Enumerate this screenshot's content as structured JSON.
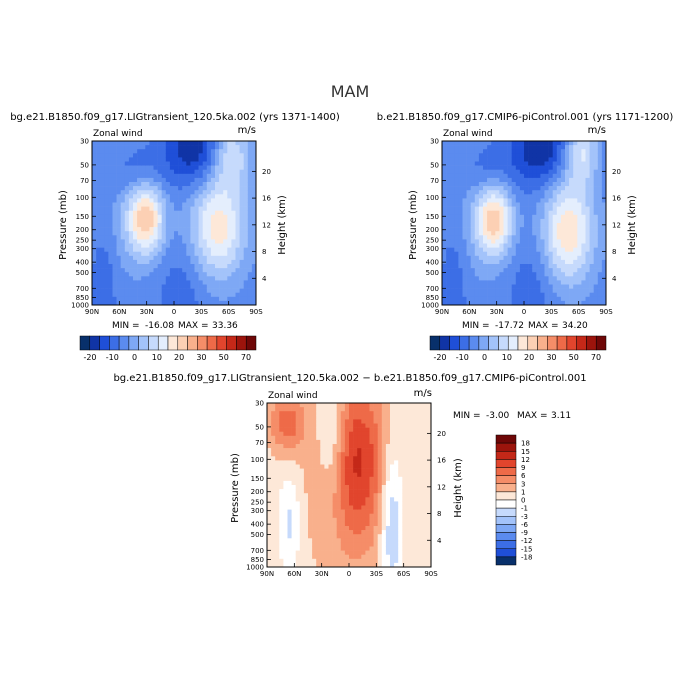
{
  "page_title": "MAM",
  "chart_data": [
    {
      "type": "heatmap",
      "title": "bg.e21.B1850.f09_g17.LIGtransient_120.5ka.002 (yrs 1371-1400)",
      "left_label": "Zonal wind",
      "right_label": "m/s",
      "xlabel": "",
      "ylabel": "Pressure (mb)",
      "y2label": "Height (km)",
      "x_ticks": [
        "90N",
        "60N",
        "30N",
        "0",
        "30S",
        "60S",
        "90S"
      ],
      "y_ticks": [
        "30",
        "50",
        "70",
        "100",
        "150",
        "200",
        "250",
        "300",
        "400",
        "500",
        "700",
        "850",
        "1000"
      ],
      "y2_ticks": [
        "20",
        "16",
        "12",
        "8",
        "4"
      ],
      "stats": {
        "min_label": "MIN =",
        "min": "-16.08",
        "max_label": "MAX =",
        "max": "33.36"
      },
      "colorbar": {
        "orientation": "horizontal",
        "labels": [
          "-20",
          "-10",
          "0",
          "10",
          "20",
          "30",
          "50",
          "70"
        ],
        "colors": [
          "#08306b",
          "#1034a6",
          "#1f4fd8",
          "#3c6ee6",
          "#5b8bef",
          "#7ea8f5",
          "#a3c3fa",
          "#c6dafc",
          "#e4eefd",
          "#fde8d8",
          "#fcd0b4",
          "#f9b08c",
          "#f58d68",
          "#ee6a48",
          "#e1452d",
          "#c42818",
          "#9c140c",
          "#6e0707"
        ]
      },
      "zlim": [
        -24,
        74
      ],
      "features": [
        {
          "kind": "gauss",
          "x": 0.62,
          "y": 0.05,
          "sx": 0.12,
          "sy": 0.16,
          "a": -18
        },
        {
          "kind": "gauss",
          "x": 0.28,
          "y": 0.2,
          "sx": 0.12,
          "sy": 0.12,
          "a": -8
        },
        {
          "kind": "gauss",
          "x": 0.85,
          "y": 0.08,
          "sx": 0.08,
          "sy": 0.14,
          "a": 18
        },
        {
          "kind": "gauss",
          "x": 0.33,
          "y": 0.47,
          "sx": 0.08,
          "sy": 0.16,
          "a": 34
        },
        {
          "kind": "gauss",
          "x": 0.77,
          "y": 0.52,
          "sx": 0.12,
          "sy": 0.22,
          "a": 28
        },
        {
          "kind": "gauss",
          "x": 0.18,
          "y": 0.48,
          "sx": 0.1,
          "sy": 0.3,
          "a": 5
        },
        {
          "kind": "gauss",
          "x": 0.55,
          "y": 0.95,
          "sx": 0.1,
          "sy": 0.25,
          "a": -6
        },
        {
          "kind": "gauss",
          "x": 0.08,
          "y": 0.85,
          "sx": 0.06,
          "sy": 0.3,
          "a": -6
        }
      ]
    },
    {
      "type": "heatmap",
      "title": "b.e21.B1850.f09_g17.CMIP6-piControl.001 (yrs 1171-1200)",
      "left_label": "Zonal wind",
      "right_label": "m/s",
      "xlabel": "",
      "ylabel": "Pressure (mb)",
      "y2label": "Height (km)",
      "x_ticks": [
        "90N",
        "60N",
        "30N",
        "0",
        "30S",
        "60S",
        "90S"
      ],
      "y_ticks": [
        "30",
        "50",
        "70",
        "100",
        "150",
        "200",
        "250",
        "300",
        "400",
        "500",
        "700",
        "850",
        "1000"
      ],
      "y2_ticks": [
        "20",
        "16",
        "12",
        "8",
        "4"
      ],
      "stats": {
        "min_label": "MIN =",
        "min": "-17.72",
        "max_label": "MAX =",
        "max": "34.20"
      },
      "colorbar": {
        "orientation": "horizontal",
        "labels": [
          "-20",
          "-10",
          "0",
          "10",
          "20",
          "30",
          "50",
          "70"
        ],
        "colors": [
          "#08306b",
          "#1034a6",
          "#1f4fd8",
          "#3c6ee6",
          "#5b8bef",
          "#7ea8f5",
          "#a3c3fa",
          "#c6dafc",
          "#e4eefd",
          "#fde8d8",
          "#fcd0b4",
          "#f9b08c",
          "#f58d68",
          "#ee6a48",
          "#e1452d",
          "#c42818",
          "#9c140c",
          "#6e0707"
        ]
      },
      "zlim": [
        -24,
        74
      ],
      "features": [
        {
          "kind": "gauss",
          "x": 0.6,
          "y": 0.04,
          "sx": 0.12,
          "sy": 0.16,
          "a": -19
        },
        {
          "kind": "gauss",
          "x": 0.28,
          "y": 0.2,
          "sx": 0.12,
          "sy": 0.12,
          "a": -8
        },
        {
          "kind": "gauss",
          "x": 0.85,
          "y": 0.06,
          "sx": 0.07,
          "sy": 0.14,
          "a": 20
        },
        {
          "kind": "gauss",
          "x": 0.32,
          "y": 0.48,
          "sx": 0.08,
          "sy": 0.16,
          "a": 33
        },
        {
          "kind": "gauss",
          "x": 0.77,
          "y": 0.55,
          "sx": 0.11,
          "sy": 0.22,
          "a": 30
        },
        {
          "kind": "gauss",
          "x": 0.18,
          "y": 0.48,
          "sx": 0.1,
          "sy": 0.3,
          "a": 5
        },
        {
          "kind": "gauss",
          "x": 0.55,
          "y": 0.95,
          "sx": 0.1,
          "sy": 0.25,
          "a": -6
        },
        {
          "kind": "gauss",
          "x": 0.08,
          "y": 0.85,
          "sx": 0.06,
          "sy": 0.3,
          "a": -6
        }
      ]
    },
    {
      "type": "heatmap",
      "title": "bg.e21.B1850.f09_g17.LIGtransient_120.5ka.002 − b.e21.B1850.f09_g17.CMIP6-piControl.001",
      "left_label": "Zonal wind",
      "right_label": "m/s",
      "xlabel": "",
      "ylabel": "Pressure (mb)",
      "y2label": "Height (km)",
      "x_ticks": [
        "90N",
        "60N",
        "30N",
        "0",
        "30S",
        "60S",
        "90S"
      ],
      "y_ticks": [
        "30",
        "50",
        "70",
        "100",
        "150",
        "200",
        "250",
        "300",
        "400",
        "500",
        "700",
        "850",
        "1000"
      ],
      "y2_ticks": [
        "20",
        "16",
        "12",
        "8",
        "4"
      ],
      "stats": {
        "min_label": "MIN =",
        "min": "-3.00",
        "max_label": "MAX =",
        "max": "3.11"
      },
      "colorbar": {
        "orientation": "vertical",
        "labels": [
          "18",
          "15",
          "12",
          "9",
          "6",
          "3",
          "1",
          "0",
          "-1",
          "-3",
          "-6",
          "-9",
          "-12",
          "-15",
          "-18"
        ],
        "colors": [
          "#6e0707",
          "#9c140c",
          "#c42818",
          "#e1452d",
          "#ee6a48",
          "#f58d68",
          "#f9b08c",
          "#fde8d8",
          "#ffffff",
          "#c6dafc",
          "#a3c3fa",
          "#7ea8f5",
          "#5b8bef",
          "#3c6ee6",
          "#1f4fd8",
          "#08306b"
        ]
      },
      "zlim": [
        -3.2,
        3.2
      ],
      "features": [
        {
          "kind": "gauss",
          "x": 0.5,
          "y": 0.5,
          "sx": 0.35,
          "sy": 0.6,
          "a": 0.6
        },
        {
          "kind": "gauss",
          "x": 0.55,
          "y": 0.35,
          "sx": 0.12,
          "sy": 0.35,
          "a": 1.5
        },
        {
          "kind": "gauss",
          "x": 0.12,
          "y": 0.12,
          "sx": 0.08,
          "sy": 0.12,
          "a": 1.2
        },
        {
          "kind": "gauss",
          "x": 0.4,
          "y": 0.2,
          "sx": 0.06,
          "sy": 0.3,
          "a": -0.9
        },
        {
          "kind": "gauss",
          "x": 0.76,
          "y": 0.7,
          "sx": 0.05,
          "sy": 0.35,
          "a": -1.2
        },
        {
          "kind": "gauss",
          "x": 0.14,
          "y": 0.72,
          "sx": 0.05,
          "sy": 0.2,
          "a": -0.8
        }
      ]
    }
  ]
}
